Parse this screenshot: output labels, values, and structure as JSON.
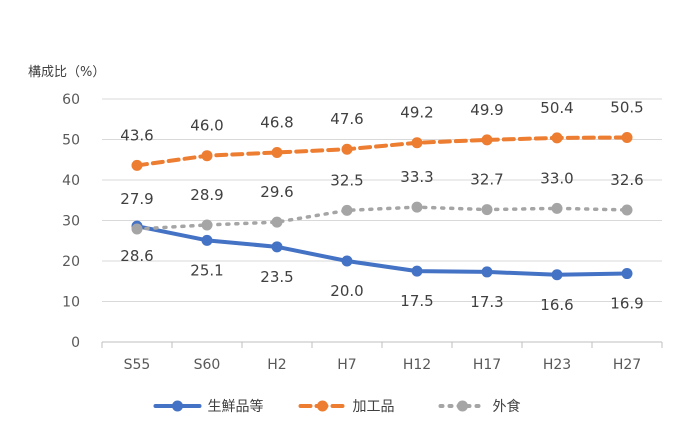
{
  "chart_data": {
    "type": "line",
    "ylabel": "構成比（%）",
    "ylim": [
      0,
      60
    ],
    "yticks": [
      0,
      10,
      20,
      30,
      40,
      50,
      60
    ],
    "categories": [
      "S55",
      "S60",
      "H2",
      "H7",
      "H12",
      "H17",
      "H23",
      "H27"
    ],
    "grid": "horizontal",
    "legend_position": "bottom",
    "series": [
      {
        "name": "生鮮品等",
        "color": "#4472C4",
        "style": "solid",
        "values": [
          28.6,
          25.1,
          23.5,
          20.0,
          17.5,
          17.3,
          16.6,
          16.9
        ]
      },
      {
        "name": "加工品",
        "color": "#ED7D31",
        "style": "dashed",
        "values": [
          43.6,
          46.0,
          46.8,
          47.6,
          49.2,
          49.9,
          50.4,
          50.5
        ]
      },
      {
        "name": "外食",
        "color": "#A5A5A5",
        "style": "dotted",
        "values": [
          27.9,
          28.9,
          29.6,
          32.5,
          33.3,
          32.7,
          33.0,
          32.6
        ]
      }
    ]
  }
}
